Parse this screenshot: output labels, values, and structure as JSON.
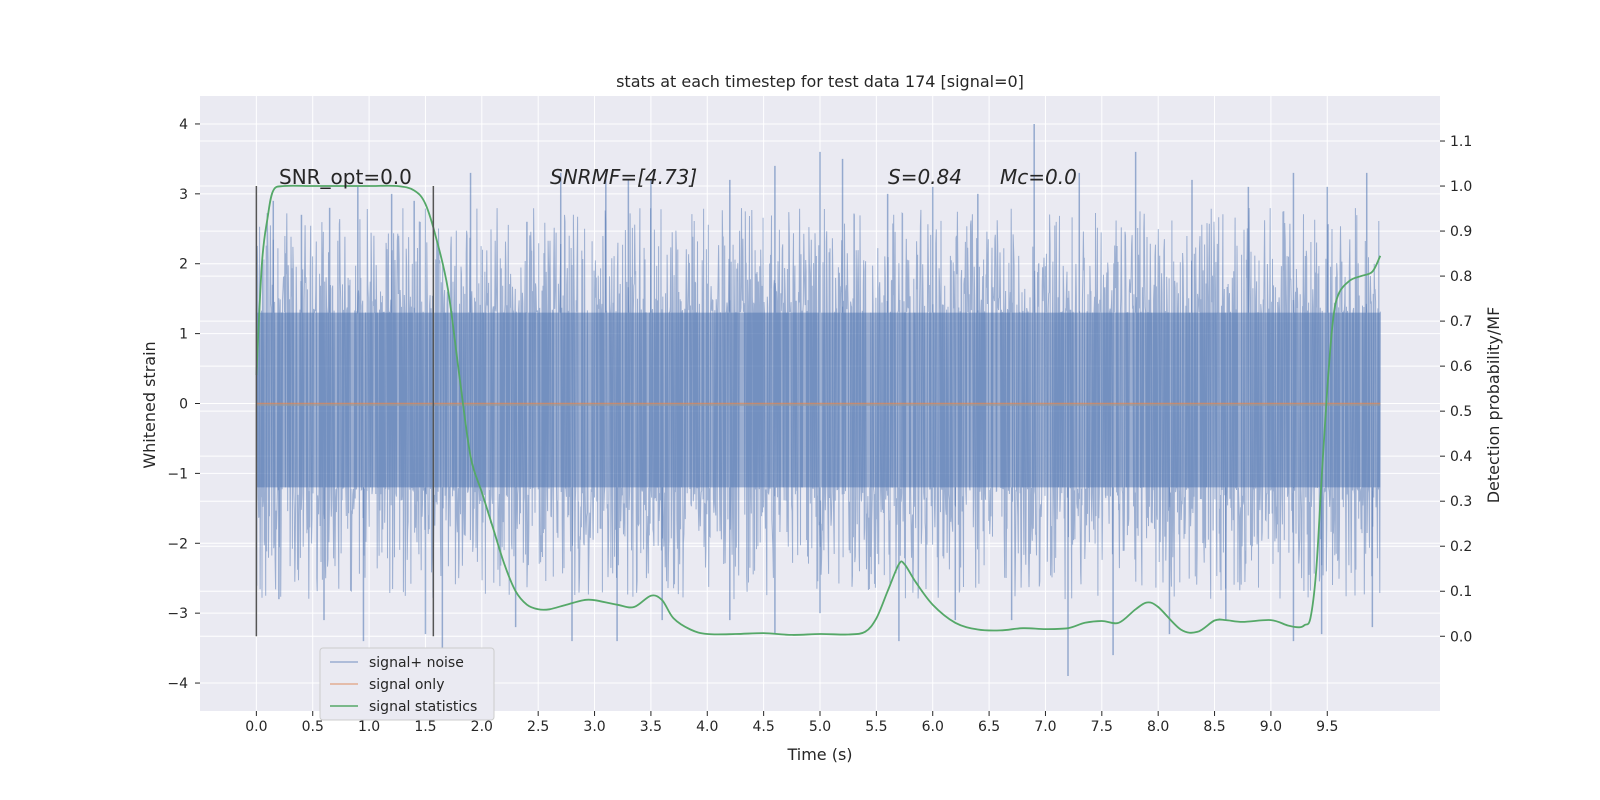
{
  "chart_data": {
    "type": "line",
    "title": "stats at each timestep for test data 174 [signal=0]",
    "xlabel": "Time (s)",
    "ylabel": "Whitened strain",
    "y2label": "Detection probability/MF",
    "xlim": [
      -0.5,
      10.5
    ],
    "ylim": [
      -4.4,
      4.4
    ],
    "y2lim": [
      -0.166,
      1.2
    ],
    "x_ticks": [
      0.0,
      0.5,
      1.0,
      1.5,
      2.0,
      2.5,
      3.0,
      3.5,
      4.0,
      4.5,
      5.0,
      5.5,
      6.0,
      6.5,
      7.0,
      7.5,
      8.0,
      8.5,
      9.0,
      9.5
    ],
    "x_tick_labels": [
      "0.0",
      "0.5",
      "1.0",
      "1.5",
      "2.0",
      "2.5",
      "3.0",
      "3.5",
      "4.0",
      "4.5",
      "5.0",
      "5.5",
      "6.0",
      "6.5",
      "7.0",
      "7.5",
      "8.0",
      "8.5",
      "9.0",
      "9.5"
    ],
    "y_ticks": [
      -4,
      -3,
      -2,
      -1,
      0,
      1,
      2,
      3,
      4
    ],
    "y_tick_labels": [
      "−4",
      "−3",
      "−2",
      "−1",
      "0",
      "1",
      "2",
      "3",
      "4"
    ],
    "y2_ticks": [
      0.0,
      0.1,
      0.2,
      0.3,
      0.4,
      0.5,
      0.6,
      0.7,
      0.8,
      0.9,
      1.0,
      1.1
    ],
    "y2_tick_labels": [
      "0.0",
      "0.1",
      "0.2",
      "0.3",
      "0.4",
      "0.5",
      "0.6",
      "0.7",
      "0.8",
      "0.9",
      "1.0",
      "1.1"
    ],
    "grid": true,
    "legend_position": "lower-left",
    "colors": {
      "noise": "#4c72b0",
      "signal": "#dd8452",
      "statistics": "#55a868",
      "background": "#eaeaf2",
      "grid": "#ffffff",
      "marker": "#555555"
    },
    "series": [
      {
        "name": "signal+ noise",
        "noise_band": [
          -1.2,
          1.3
        ],
        "x_range": [
          0.0,
          9.97
        ],
        "peaks_up": [
          [
            0.15,
            2.9
          ],
          [
            0.4,
            2.7
          ],
          [
            0.65,
            2.8
          ],
          [
            0.9,
            3.1
          ],
          [
            1.2,
            3.0
          ],
          [
            1.4,
            2.9
          ],
          [
            1.9,
            3.3
          ],
          [
            2.4,
            2.6
          ],
          [
            2.7,
            3.3
          ],
          [
            3.1,
            3.3
          ],
          [
            3.3,
            3.2
          ],
          [
            3.5,
            3.2
          ],
          [
            4.2,
            3.2
          ],
          [
            4.6,
            3.4
          ],
          [
            5.0,
            3.6
          ],
          [
            5.2,
            3.5
          ],
          [
            5.6,
            3.0
          ],
          [
            6.0,
            3.1
          ],
          [
            6.4,
            3.0
          ],
          [
            6.9,
            4.0
          ],
          [
            7.3,
            3.3
          ],
          [
            7.8,
            3.6
          ],
          [
            8.3,
            3.2
          ],
          [
            8.8,
            3.1
          ],
          [
            9.2,
            3.3
          ],
          [
            9.5,
            3.1
          ],
          [
            9.85,
            3.3
          ]
        ],
        "peaks_down": [
          [
            0.2,
            -2.8
          ],
          [
            0.6,
            -3.1
          ],
          [
            0.95,
            -3.4
          ],
          [
            1.5,
            -3.3
          ],
          [
            1.65,
            -3.5
          ],
          [
            2.3,
            -3.2
          ],
          [
            2.8,
            -3.4
          ],
          [
            3.2,
            -3.4
          ],
          [
            3.6,
            -3.1
          ],
          [
            4.2,
            -3.1
          ],
          [
            4.6,
            -3.3
          ],
          [
            5.0,
            -3.0
          ],
          [
            5.7,
            -3.4
          ],
          [
            6.2,
            -3.1
          ],
          [
            6.7,
            -3.1
          ],
          [
            7.2,
            -3.9
          ],
          [
            7.6,
            -3.6
          ],
          [
            8.1,
            -3.3
          ],
          [
            8.6,
            -3.1
          ],
          [
            9.2,
            -3.4
          ],
          [
            9.45,
            -3.3
          ],
          [
            9.9,
            -3.2
          ]
        ]
      },
      {
        "name": "signal only",
        "x": [
          0.0,
          9.97
        ],
        "y": [
          0.0,
          0.0
        ]
      },
      {
        "name": "signal statistics",
        "axis": "right",
        "x": [
          0.0,
          0.05,
          0.1,
          0.15,
          0.25,
          0.5,
          0.75,
          1.0,
          1.25,
          1.4,
          1.5,
          1.6,
          1.7,
          1.8,
          1.9,
          2.0,
          2.1,
          2.2,
          2.3,
          2.4,
          2.5,
          2.6,
          2.75,
          2.9,
          3.0,
          3.2,
          3.35,
          3.5,
          3.6,
          3.7,
          3.85,
          4.0,
          4.25,
          4.5,
          4.75,
          5.0,
          5.25,
          5.4,
          5.5,
          5.6,
          5.7,
          5.75,
          5.85,
          6.0,
          6.2,
          6.4,
          6.6,
          6.8,
          7.0,
          7.2,
          7.35,
          7.5,
          7.65,
          7.8,
          7.9,
          8.0,
          8.2,
          8.35,
          8.5,
          8.6,
          8.75,
          9.0,
          9.15,
          9.25,
          9.3,
          9.35,
          9.4,
          9.45,
          9.5,
          9.55,
          9.6,
          9.7,
          9.8,
          9.9,
          9.97
        ],
        "y": [
          0.58,
          0.83,
          0.93,
          0.99,
          1.0,
          1.0,
          1.0,
          1.0,
          1.0,
          0.99,
          0.96,
          0.88,
          0.77,
          0.58,
          0.4,
          0.32,
          0.24,
          0.16,
          0.1,
          0.07,
          0.06,
          0.06,
          0.07,
          0.08,
          0.08,
          0.07,
          0.065,
          0.09,
          0.08,
          0.04,
          0.015,
          0.005,
          0.005,
          0.007,
          0.003,
          0.005,
          0.004,
          0.01,
          0.04,
          0.1,
          0.16,
          0.16,
          0.12,
          0.07,
          0.03,
          0.015,
          0.013,
          0.018,
          0.016,
          0.018,
          0.03,
          0.034,
          0.03,
          0.06,
          0.075,
          0.065,
          0.015,
          0.01,
          0.035,
          0.036,
          0.032,
          0.036,
          0.024,
          0.02,
          0.025,
          0.04,
          0.14,
          0.35,
          0.55,
          0.7,
          0.76,
          0.79,
          0.8,
          0.81,
          0.845
        ]
      }
    ],
    "marker_lines": [
      0.0,
      1.57
    ],
    "annotations": [
      {
        "x": 0.2,
        "text": "SNR_opt=0.0",
        "y": 1.0
      },
      {
        "x": 2.6,
        "text": "SNRMF=[4.73]",
        "y": 1.0
      },
      {
        "x": 5.6,
        "text": "S=0.84",
        "y": 1.0
      },
      {
        "x": 6.6,
        "text": "Mc=0.0",
        "y": 1.0
      }
    ]
  }
}
